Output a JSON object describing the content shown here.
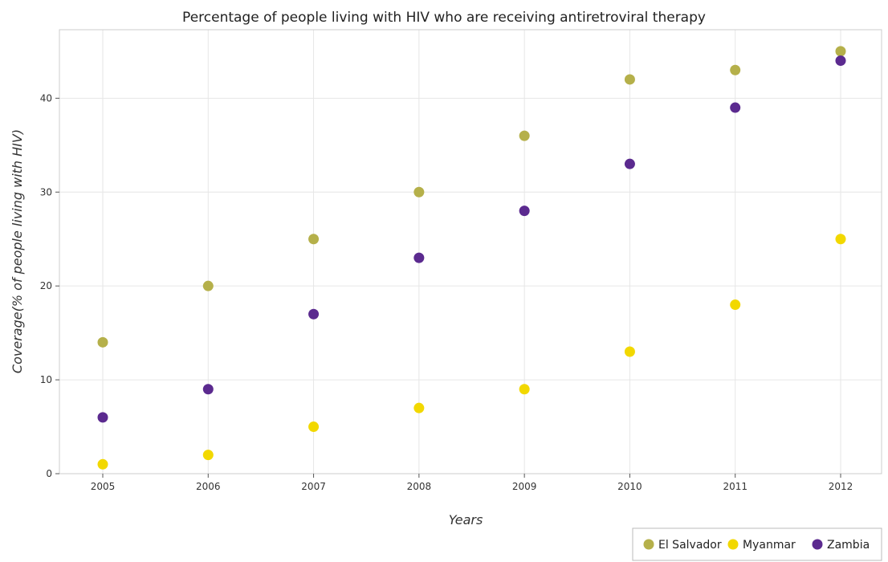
{
  "chart_data": {
    "type": "scatter",
    "title": "Percentage of people living with HIV who are receiving antiretroviral therapy",
    "xlabel": "Years",
    "ylabel": "Coverage(% of people living with HIV)",
    "categories": [
      "2005",
      "2006",
      "2007",
      "2008",
      "2009",
      "2010",
      "2011",
      "2012"
    ],
    "ylim": [
      0,
      47.3
    ],
    "yticks": [
      0,
      10,
      20,
      30,
      40
    ],
    "grid": true,
    "legend_position": "bottom-right",
    "series": [
      {
        "name": "El Salvador",
        "color": "#b5b04a",
        "values": [
          14,
          20,
          25,
          30,
          36,
          42,
          43,
          45
        ]
      },
      {
        "name": "Myanmar",
        "color": "#f2d800",
        "values": [
          1,
          2,
          5,
          7,
          9,
          13,
          18,
          25
        ]
      },
      {
        "name": "Zambia",
        "color": "#5b2a8f",
        "values": [
          6,
          9,
          17,
          23,
          28,
          33,
          39,
          44
        ]
      }
    ]
  }
}
